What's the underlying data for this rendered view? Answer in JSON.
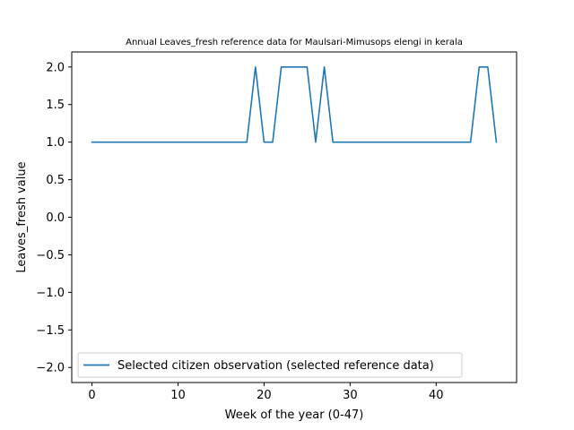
{
  "chart_data": {
    "type": "line",
    "title": "Annual Leaves_fresh reference data for Maulsari-Mimusops elengi in kerala",
    "xlabel": "Week of the year (0-47)",
    "ylabel": "Leaves_fresh value",
    "xlim": [
      -2.35,
      49.35
    ],
    "ylim": [
      -2.2,
      2.2
    ],
    "xticks": [
      0,
      10,
      20,
      30,
      40
    ],
    "yticks": [
      -2.0,
      -1.5,
      -1.0,
      -0.5,
      0.0,
      0.5,
      1.0,
      1.5,
      2.0
    ],
    "xtick_labels": [
      "0",
      "10",
      "20",
      "30",
      "40"
    ],
    "ytick_labels": [
      "−2.0",
      "−1.5",
      "−1.0",
      "−0.5",
      "0.0",
      "0.5",
      "1.0",
      "1.5",
      "2.0"
    ],
    "grid": false,
    "legend_position": "lower-left",
    "series": [
      {
        "name": "Selected citizen observation (selected reference data)",
        "color": "#1f77b4",
        "x": [
          0,
          1,
          2,
          3,
          4,
          5,
          6,
          7,
          8,
          9,
          10,
          11,
          12,
          13,
          14,
          15,
          16,
          17,
          18,
          19,
          20,
          21,
          22,
          23,
          24,
          25,
          26,
          27,
          28,
          29,
          30,
          31,
          32,
          33,
          34,
          35,
          36,
          37,
          38,
          39,
          40,
          41,
          42,
          43,
          44,
          45,
          46,
          47
        ],
        "values": [
          1,
          1,
          1,
          1,
          1,
          1,
          1,
          1,
          1,
          1,
          1,
          1,
          1,
          1,
          1,
          1,
          1,
          1,
          1,
          2,
          1,
          1,
          2,
          2,
          2,
          2,
          1,
          2,
          1,
          1,
          1,
          1,
          1,
          1,
          1,
          1,
          1,
          1,
          1,
          1,
          1,
          1,
          1,
          1,
          1,
          2,
          2,
          1
        ]
      }
    ]
  }
}
